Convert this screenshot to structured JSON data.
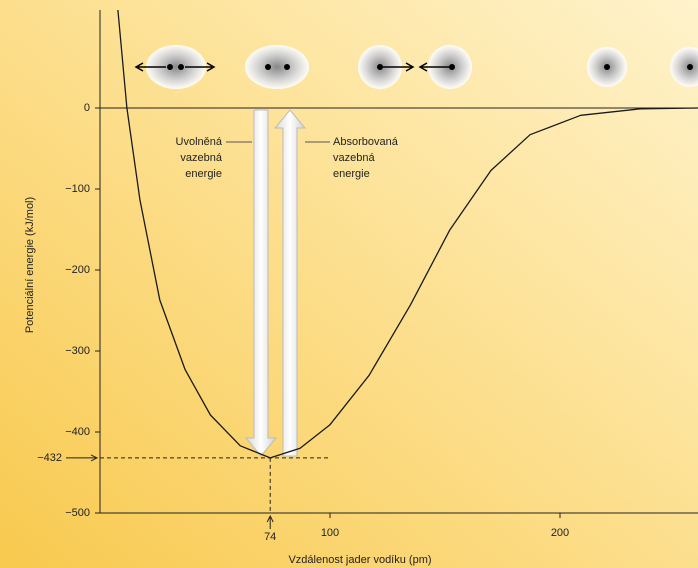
{
  "chart_data": {
    "type": "line",
    "x_label": "Vzdálenost jader vodíku (pm)",
    "y_label": "Potenciální energie (kJ/mol)",
    "x": [
      7.8,
      11.7,
      17.4,
      26,
      37,
      48,
      61,
      74,
      87,
      100,
      117,
      135,
      152,
      170,
      187,
      209,
      235,
      260
    ],
    "values": [
      121,
      0,
      -114,
      -237,
      -323,
      -379,
      -417,
      -432,
      -420,
      -391,
      -330,
      -243,
      -151,
      -77,
      -33,
      -9,
      -1,
      0
    ],
    "color": "#1a1a1a",
    "xlim": [
      0,
      260
    ],
    "ylim": [
      -500,
      121
    ],
    "xticks": [
      100,
      200
    ],
    "yticks": [
      {
        "value": 0,
        "label": "0"
      },
      {
        "value": -100,
        "label": "−100"
      },
      {
        "value": -200,
        "label": "−200"
      },
      {
        "value": -300,
        "label": "−300"
      },
      {
        "value": -400,
        "label": "−400"
      },
      {
        "value": -500,
        "label": "−500"
      }
    ],
    "x_marker": 74,
    "y_marker": {
      "value": -432,
      "label": "−432"
    },
    "released_label": [
      "Uvolněná",
      "vazebná",
      "energie"
    ],
    "absorbed_label": [
      "Absorbovaná",
      "vazebná",
      "energie"
    ]
  }
}
